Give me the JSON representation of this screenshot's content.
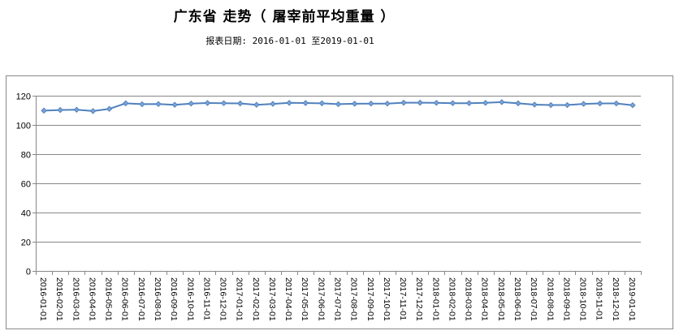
{
  "header": {
    "title": "广东省 走势（ 屠宰前平均重量 ）",
    "subtitle": "报表日期: 2016-01-01 至2019-01-01"
  },
  "chart_data": {
    "type": "line",
    "title": "广东省 走势（ 屠宰前平均重量 ）",
    "subtitle": "报表日期: 2016-01-01 至2019-01-01",
    "xlabel": "",
    "ylabel": "",
    "ylim": [
      0,
      120
    ],
    "yticks": [
      0,
      20,
      40,
      60,
      80,
      100,
      120
    ],
    "grid": true,
    "legend": null,
    "line_color": "#4f81bd",
    "categories": [
      "2016-01-01",
      "2016-02-01",
      "2016-03-01",
      "2016-04-01",
      "2016-05-01",
      "2016-06-01",
      "2016-07-01",
      "2016-08-01",
      "2016-09-01",
      "2016-10-01",
      "2016-11-01",
      "2016-12-01",
      "2017-01-01",
      "2017-02-01",
      "2017-03-01",
      "2017-04-01",
      "2017-05-01",
      "2017-06-01",
      "2017-07-01",
      "2017-08-01",
      "2017-09-01",
      "2017-10-01",
      "2017-11-01",
      "2017-12-01",
      "2018-01-01",
      "2018-02-01",
      "2018-03-01",
      "2018-04-01",
      "2018-05-01",
      "2018-06-01",
      "2018-07-01",
      "2018-08-01",
      "2018-09-01",
      "2018-10-01",
      "2018-11-01",
      "2018-12-01",
      "2019-01-01"
    ],
    "series": [
      {
        "name": "屠宰前平均重量",
        "values": [
          109.8,
          110.2,
          110.4,
          109.5,
          111.0,
          114.8,
          114.2,
          114.3,
          113.8,
          114.6,
          115.0,
          114.9,
          114.7,
          113.8,
          114.4,
          115.1,
          115.0,
          114.8,
          114.2,
          114.5,
          114.6,
          114.6,
          115.2,
          115.2,
          115.1,
          114.9,
          114.9,
          115.1,
          115.6,
          114.8,
          113.9,
          113.6,
          113.6,
          114.4,
          114.7,
          114.7,
          113.5
        ]
      }
    ]
  }
}
